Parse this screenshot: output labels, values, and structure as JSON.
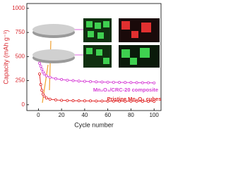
{
  "chart_data": {
    "type": "line",
    "x_label": "Cycle number",
    "y_label": "Capacity (mAh g⁻¹)",
    "x": [
      1,
      2,
      3,
      4,
      5,
      7,
      10,
      15,
      20,
      25,
      30,
      35,
      40,
      45,
      50,
      55,
      60,
      65,
      70,
      75,
      80,
      85,
      90,
      95,
      100
    ],
    "series": [
      {
        "name": "Mn₂O₃/CRC-20 composite",
        "color": "#d63fd6",
        "values": [
          430,
          400,
          370,
          340,
          320,
          300,
          285,
          270,
          262,
          255,
          250,
          246,
          243,
          240,
          238,
          236,
          234,
          233,
          232,
          231,
          230,
          229,
          228,
          228,
          227
        ]
      },
      {
        "name": "Pristine Mn₂O₃ cubes",
        "color": "#e02828",
        "values": [
          320,
          210,
          150,
          110,
          90,
          70,
          58,
          50,
          46,
          44,
          42,
          41,
          40,
          40,
          39,
          39,
          38,
          38,
          38,
          37,
          37,
          37,
          36,
          36,
          36
        ]
      }
    ],
    "xlim": [
      -10,
      106
    ],
    "xticks": [
      0,
      20,
      40,
      60,
      80,
      100
    ],
    "ylim": [
      -60,
      1050
    ],
    "yticks": [
      0,
      250,
      500,
      750,
      1000
    ]
  }
}
